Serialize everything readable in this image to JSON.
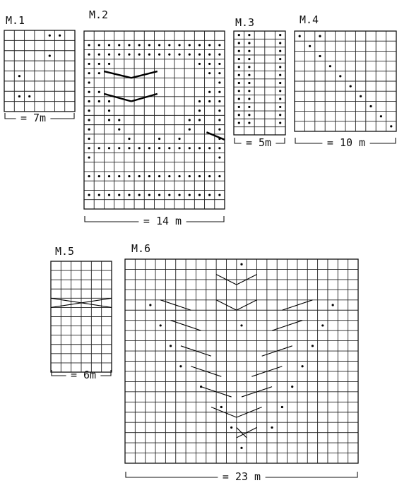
{
  "charts": [
    {
      "title": "M.1",
      "width_label": "= 7m",
      "cols": 7,
      "rows": 8,
      "dots": [
        [
          0,
          4
        ],
        [
          0,
          5
        ],
        [
          2,
          4
        ],
        [
          4,
          1
        ],
        [
          6,
          1
        ],
        [
          6,
          2
        ]
      ],
      "cables": []
    },
    {
      "title": "M.2",
      "width_label": "= 14 m",
      "cols": 14,
      "rows": 19,
      "dots": [
        [
          1,
          0
        ],
        [
          1,
          1
        ],
        [
          1,
          2
        ],
        [
          1,
          3
        ],
        [
          1,
          4
        ],
        [
          1,
          5
        ],
        [
          1,
          6
        ],
        [
          1,
          7
        ],
        [
          1,
          8
        ],
        [
          1,
          9
        ],
        [
          1,
          10
        ],
        [
          1,
          11
        ],
        [
          1,
          12
        ],
        [
          1,
          13
        ],
        [
          2,
          0
        ],
        [
          2,
          1
        ],
        [
          2,
          2
        ],
        [
          2,
          3
        ],
        [
          2,
          4
        ],
        [
          2,
          5
        ],
        [
          2,
          6
        ],
        [
          2,
          7
        ],
        [
          2,
          8
        ],
        [
          2,
          9
        ],
        [
          2,
          10
        ],
        [
          2,
          11
        ],
        [
          2,
          12
        ],
        [
          2,
          13
        ],
        [
          3,
          0
        ],
        [
          3,
          1
        ],
        [
          3,
          2
        ],
        [
          3,
          11
        ],
        [
          3,
          12
        ],
        [
          3,
          13
        ],
        [
          4,
          0
        ],
        [
          4,
          1
        ],
        [
          4,
          12
        ],
        [
          4,
          13
        ],
        [
          5,
          0
        ],
        [
          5,
          13
        ],
        [
          6,
          0
        ],
        [
          6,
          1
        ],
        [
          6,
          12
        ],
        [
          6,
          13
        ],
        [
          7,
          0
        ],
        [
          7,
          1
        ],
        [
          7,
          2
        ],
        [
          7,
          11
        ],
        [
          7,
          12
        ],
        [
          7,
          13
        ],
        [
          8,
          0
        ],
        [
          8,
          2
        ],
        [
          8,
          11
        ],
        [
          8,
          13
        ],
        [
          9,
          0
        ],
        [
          9,
          2
        ],
        [
          9,
          3
        ],
        [
          9,
          10
        ],
        [
          9,
          11
        ],
        [
          9,
          13
        ],
        [
          10,
          0
        ],
        [
          10,
          3
        ],
        [
          10,
          10
        ],
        [
          10,
          13
        ],
        [
          11,
          0
        ],
        [
          11,
          4
        ],
        [
          11,
          7
        ],
        [
          11,
          9
        ],
        [
          11,
          13
        ],
        [
          12,
          0
        ],
        [
          12,
          1
        ],
        [
          12,
          2
        ],
        [
          12,
          3
        ],
        [
          12,
          4
        ],
        [
          12,
          5
        ],
        [
          12,
          6
        ],
        [
          12,
          7
        ],
        [
          12,
          8
        ],
        [
          12,
          9
        ],
        [
          12,
          10
        ],
        [
          12,
          11
        ],
        [
          12,
          12
        ],
        [
          12,
          13
        ],
        [
          13,
          0
        ],
        [
          13,
          13
        ],
        [
          15,
          0
        ],
        [
          15,
          1
        ],
        [
          15,
          2
        ],
        [
          15,
          3
        ],
        [
          15,
          4
        ],
        [
          15,
          5
        ],
        [
          15,
          6
        ],
        [
          15,
          7
        ],
        [
          15,
          8
        ],
        [
          15,
          9
        ],
        [
          15,
          10
        ],
        [
          15,
          11
        ],
        [
          15,
          12
        ],
        [
          15,
          13
        ],
        [
          17,
          0
        ],
        [
          17,
          1
        ],
        [
          17,
          2
        ],
        [
          17,
          3
        ],
        [
          17,
          4
        ],
        [
          17,
          5
        ],
        [
          17,
          6
        ],
        [
          17,
          7
        ],
        [
          17,
          8
        ],
        [
          17,
          9
        ],
        [
          17,
          10
        ],
        [
          17,
          11
        ],
        [
          17,
          12
        ],
        [
          17,
          13
        ]
      ],
      "cables": [
        {
          "r1": 4.3,
          "c1": 2.0,
          "r2": 5.0,
          "c2": 4.7,
          "style": "bold"
        },
        {
          "r1": 5.0,
          "c1": 4.7,
          "r2": 4.3,
          "c2": 7.3,
          "style": "bold"
        },
        {
          "r1": 6.7,
          "c1": 2.0,
          "r2": 7.5,
          "c2": 4.7,
          "style": "bold"
        },
        {
          "r1": 7.5,
          "c1": 4.7,
          "r2": 6.7,
          "c2": 7.3,
          "style": "bold"
        },
        {
          "r1": 10.8,
          "c1": 12.2,
          "r2": 11.6,
          "c2": 14.0,
          "style": "bold"
        }
      ]
    },
    {
      "title": "M.3",
      "width_label": "= 5m",
      "cols": 5,
      "rows": 13,
      "dots": [
        [
          0,
          0
        ],
        [
          0,
          1
        ],
        [
          0,
          4
        ],
        [
          1,
          0
        ],
        [
          1,
          1
        ],
        [
          1,
          4
        ],
        [
          2,
          0
        ],
        [
          2,
          1
        ],
        [
          2,
          4
        ],
        [
          3,
          0
        ],
        [
          3,
          1
        ],
        [
          3,
          4
        ],
        [
          4,
          0
        ],
        [
          4,
          1
        ],
        [
          4,
          4
        ],
        [
          5,
          0
        ],
        [
          5,
          1
        ],
        [
          5,
          4
        ],
        [
          6,
          0
        ],
        [
          6,
          1
        ],
        [
          6,
          4
        ],
        [
          7,
          0
        ],
        [
          7,
          1
        ],
        [
          7,
          4
        ],
        [
          8,
          0
        ],
        [
          8,
          1
        ],
        [
          8,
          4
        ],
        [
          9,
          0
        ],
        [
          9,
          1
        ],
        [
          9,
          4
        ],
        [
          10,
          0
        ],
        [
          10,
          1
        ],
        [
          10,
          4
        ],
        [
          11,
          0
        ],
        [
          11,
          1
        ],
        [
          11,
          4
        ]
      ],
      "cables": []
    },
    {
      "title": "M.4",
      "width_label": "= 10 m",
      "cols": 10,
      "rows": 10,
      "dots": [
        [
          0,
          0
        ],
        [
          0,
          2
        ],
        [
          1,
          1
        ],
        [
          2,
          2
        ],
        [
          3,
          3
        ],
        [
          4,
          4
        ],
        [
          5,
          5
        ],
        [
          6,
          6
        ],
        [
          7,
          7
        ],
        [
          8,
          8
        ],
        [
          9,
          9
        ]
      ],
      "cables": []
    },
    {
      "title": "M.5",
      "width_label": "= 6m",
      "cols": 6,
      "rows": 12,
      "dots": [],
      "cables": [
        {
          "r1": 4.0,
          "c1": 0.0,
          "r2": 5.0,
          "c2": 6.0,
          "style": "thin"
        },
        {
          "r1": 5.0,
          "c1": 0.0,
          "r2": 4.0,
          "c2": 6.0,
          "style": "thin"
        }
      ]
    },
    {
      "title": "M.6",
      "width_label": "= 23 m",
      "cols": 23,
      "rows": 20,
      "dots": [
        [
          0,
          11
        ],
        [
          4,
          2
        ],
        [
          4,
          20
        ],
        [
          6,
          3
        ],
        [
          6,
          11
        ],
        [
          6,
          19
        ],
        [
          8,
          4
        ],
        [
          8,
          18
        ],
        [
          10,
          5
        ],
        [
          10,
          17
        ],
        [
          12,
          7
        ],
        [
          12,
          16
        ],
        [
          14,
          9
        ],
        [
          14,
          15
        ],
        [
          16,
          10
        ],
        [
          16,
          14
        ],
        [
          18,
          11
        ]
      ],
      "cables": [
        {
          "r1": 1.5,
          "c1": 9.0,
          "r2": 2.5,
          "c2": 11.0,
          "style": "thin"
        },
        {
          "r1": 2.5,
          "c1": 11.0,
          "r2": 1.5,
          "c2": 13.0,
          "style": "thin"
        },
        {
          "r1": 4.0,
          "c1": 3.5,
          "r2": 5.0,
          "c2": 6.5,
          "style": "thin"
        },
        {
          "r1": 4.0,
          "c1": 9.0,
          "r2": 5.0,
          "c2": 11.0,
          "style": "thin"
        },
        {
          "r1": 5.0,
          "c1": 11.0,
          "r2": 4.0,
          "c2": 13.0,
          "style": "thin"
        },
        {
          "r1": 5.0,
          "c1": 15.5,
          "r2": 4.0,
          "c2": 18.5,
          "style": "thin"
        },
        {
          "r1": 6.0,
          "c1": 4.5,
          "r2": 7.0,
          "c2": 7.5,
          "style": "thin"
        },
        {
          "r1": 7.0,
          "c1": 14.5,
          "r2": 6.0,
          "c2": 17.5,
          "style": "thin"
        },
        {
          "r1": 8.5,
          "c1": 5.5,
          "r2": 9.5,
          "c2": 8.5,
          "style": "thin"
        },
        {
          "r1": 9.5,
          "c1": 13.5,
          "r2": 8.5,
          "c2": 16.5,
          "style": "thin"
        },
        {
          "r1": 10.5,
          "c1": 6.5,
          "r2": 11.5,
          "c2": 9.5,
          "style": "thin"
        },
        {
          "r1": 11.5,
          "c1": 12.5,
          "r2": 10.5,
          "c2": 15.5,
          "style": "thin"
        },
        {
          "r1": 12.5,
          "c1": 7.5,
          "r2": 13.5,
          "c2": 10.5,
          "style": "thin"
        },
        {
          "r1": 13.5,
          "c1": 11.5,
          "r2": 12.5,
          "c2": 14.5,
          "style": "thin"
        },
        {
          "r1": 14.5,
          "c1": 8.5,
          "r2": 15.5,
          "c2": 11.0,
          "style": "thin"
        },
        {
          "r1": 15.5,
          "c1": 11.0,
          "r2": 14.5,
          "c2": 13.5,
          "style": "thin"
        },
        {
          "r1": 16.5,
          "c1": 11.0,
          "r2": 17.5,
          "c2": 12.0,
          "style": "thin"
        },
        {
          "r1": 17.5,
          "c1": 11.0,
          "r2": 16.5,
          "c2": 13.0,
          "style": "thin"
        }
      ]
    }
  ]
}
